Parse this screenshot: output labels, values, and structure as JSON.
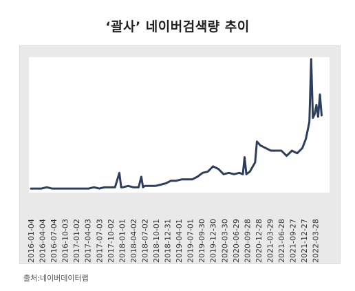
{
  "title": "‘괄사’ 네이버검색량 추이",
  "source": "출처:네이버데이터랩",
  "chart_data": {
    "type": "line",
    "title": "‘괄사’ 네이버검색량 추이",
    "xlabel": "",
    "ylabel": "",
    "grid": false,
    "legend": "none",
    "line_color": "#2d3e5c",
    "ylim": [
      0,
      100
    ],
    "x_tick_labels": [
      "2016-01-04",
      "2016-04-04",
      "2016-07-04",
      "2016-10-03",
      "2017-01-02",
      "2017-04-03",
      "2017-07-03",
      "2017-10-02",
      "2018-01-01",
      "2018-04-02",
      "2018-07-02",
      "2018-10-01",
      "2018-12-31",
      "2019-04-01",
      "2019-07-01",
      "2019-09-30",
      "2019-12-30",
      "2020-03-30",
      "2020-06-29",
      "2020-09-28",
      "2020-12-28",
      "2021-03-29",
      "2021-06-28",
      "2021-09-27",
      "2021-12-27",
      "2022-03-28"
    ],
    "series": [
      {
        "x": [
          "2016-01-04",
          "2016-02-15",
          "2016-03-28",
          "2016-05-09",
          "2016-06-20",
          "2016-08-01",
          "2016-09-12",
          "2016-10-24",
          "2016-12-05",
          "2017-01-16",
          "2017-02-27",
          "2017-04-10",
          "2017-05-22",
          "2017-07-03",
          "2017-08-14",
          "2017-09-25",
          "2017-11-06",
          "2017-12-11",
          "2017-12-25",
          "2018-01-08",
          "2018-02-19",
          "2018-04-02",
          "2018-05-14",
          "2018-06-04",
          "2018-06-18",
          "2018-07-02",
          "2018-08-13",
          "2018-09-24",
          "2018-11-05",
          "2018-12-17",
          "2019-01-28",
          "2019-03-11",
          "2019-04-22",
          "2019-06-03",
          "2019-07-15",
          "2019-08-26",
          "2019-10-07",
          "2019-11-18",
          "2019-12-30",
          "2020-02-10",
          "2020-03-23",
          "2020-05-04",
          "2020-06-15",
          "2020-07-27",
          "2020-08-24",
          "2020-09-07",
          "2020-09-21",
          "2020-10-19",
          "2020-11-30",
          "2020-12-14",
          "2021-01-11",
          "2021-02-22",
          "2021-04-05",
          "2021-05-17",
          "2021-06-28",
          "2021-08-09",
          "2021-09-20",
          "2021-11-01",
          "2021-12-13",
          "2022-01-10",
          "2022-02-07",
          "2022-02-21",
          "2022-03-07",
          "2022-03-21",
          "2022-04-04",
          "2022-04-18",
          "2022-05-02",
          "2022-05-16"
        ],
        "y": [
          1,
          1,
          1,
          2,
          1,
          1,
          1,
          1,
          1,
          1,
          1,
          1,
          2,
          1,
          2,
          2,
          2,
          13,
          2,
          2,
          3,
          2,
          2,
          10,
          2,
          3,
          3,
          3,
          4,
          5,
          7,
          7,
          8,
          8,
          8,
          10,
          13,
          14,
          18,
          16,
          12,
          13,
          12,
          13,
          12,
          25,
          12,
          14,
          21,
          37,
          34,
          32,
          30,
          30,
          30,
          26,
          30,
          28,
          32,
          39,
          52,
          100,
          55,
          58,
          65,
          56,
          73,
          57
        ]
      }
    ]
  }
}
